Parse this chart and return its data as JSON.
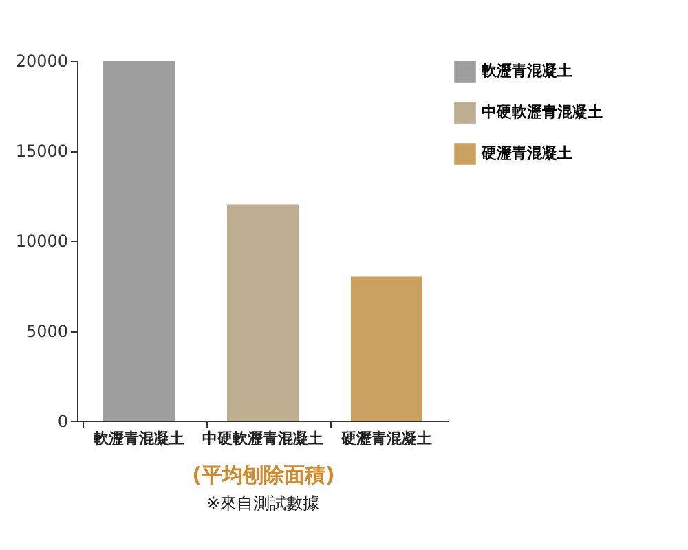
{
  "chart_data": {
    "type": "bar",
    "xlabel": "(平均刨除面積)",
    "categories": [
      "軟瀝青混凝土",
      "中硬軟瀝青混凝土",
      "硬瀝青混凝土"
    ],
    "series": [
      {
        "name": "軟瀝青混凝土",
        "color": "#9d9e9d",
        "values": [
          20000,
          null,
          null
        ]
      },
      {
        "name": "中硬軟瀝青混凝土",
        "color": "#bcae8f",
        "values": [
          null,
          12000,
          null
        ]
      },
      {
        "name": "硬瀝青混凝土",
        "color": "#c9a060",
        "values": [
          null,
          null,
          8000
        ]
      }
    ],
    "ylim": [
      0,
      20000
    ],
    "yticks": [
      0,
      5000,
      10000,
      15000,
      20000
    ],
    "grid": false,
    "legend": "top right",
    "annotations": [
      "※來自測試數據"
    ]
  }
}
